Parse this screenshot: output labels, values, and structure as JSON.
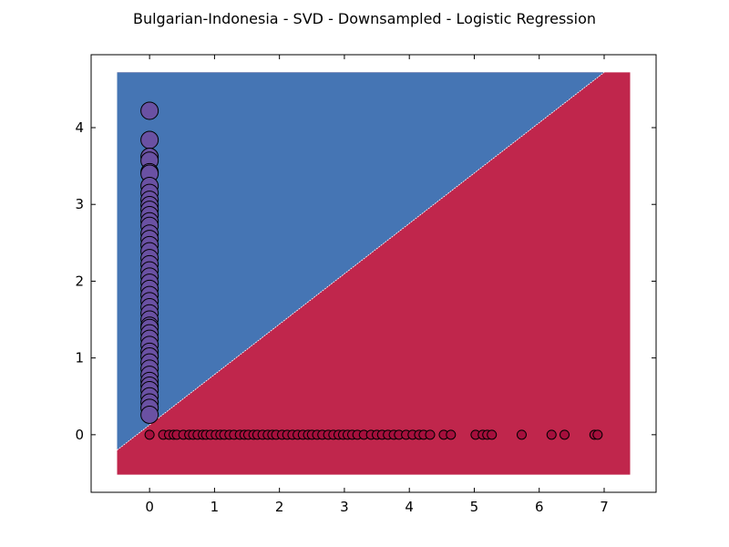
{
  "chart_data": {
    "type": "scatter",
    "title": "Bulgarian-Indonesia - SVD - Downsampled - Logistic Regression",
    "xlabel": "",
    "ylabel": "",
    "xlim": [
      -0.9,
      7.8
    ],
    "ylim": [
      -0.75,
      4.95
    ],
    "grid": false,
    "x_ticks": [
      "0",
      "1",
      "2",
      "3",
      "4",
      "5",
      "6",
      "7"
    ],
    "y_ticks": [
      "0",
      "1",
      "2",
      "3",
      "4"
    ],
    "decision_region": {
      "extent_x": [
        -0.5,
        7.4
      ],
      "extent_y": [
        -0.52,
        4.72
      ],
      "boundary_line": [
        [
          -0.5,
          -0.2
        ],
        [
          7.0,
          4.72
        ]
      ],
      "upper_left_color": "#4575b4",
      "lower_right_color": "#c0264c"
    },
    "series": [
      {
        "color": "#6a51a3",
        "marker_size": "large",
        "points": [
          [
            0,
            4.22
          ],
          [
            0,
            3.84
          ],
          [
            0,
            3.62
          ],
          [
            0,
            3.57
          ],
          [
            0,
            3.42
          ],
          [
            0,
            3.4
          ],
          [
            0,
            3.24
          ],
          [
            0,
            3.15
          ],
          [
            0,
            3.06
          ],
          [
            0,
            2.99
          ],
          [
            0,
            2.93
          ],
          [
            0,
            2.86
          ],
          [
            0,
            2.78
          ],
          [
            0,
            2.72
          ],
          [
            0,
            2.62
          ],
          [
            0,
            2.55
          ],
          [
            0,
            2.47
          ],
          [
            0,
            2.39
          ],
          [
            0,
            2.3
          ],
          [
            0,
            2.22
          ],
          [
            0,
            2.14
          ],
          [
            0,
            2.06
          ],
          [
            0,
            1.98
          ],
          [
            0,
            1.9
          ],
          [
            0,
            1.82
          ],
          [
            0,
            1.74
          ],
          [
            0,
            1.66
          ],
          [
            0,
            1.58
          ],
          [
            0,
            1.5
          ],
          [
            0,
            1.42
          ],
          [
            0,
            1.39
          ],
          [
            0,
            1.32
          ],
          [
            0,
            1.25
          ],
          [
            0,
            1.17
          ],
          [
            0,
            1.08
          ],
          [
            0,
            1.02
          ],
          [
            0,
            0.94
          ],
          [
            0,
            0.86
          ],
          [
            0,
            0.78
          ],
          [
            0,
            0.7
          ],
          [
            0,
            0.64
          ],
          [
            0,
            0.58
          ],
          [
            0,
            0.5
          ],
          [
            0,
            0.42
          ],
          [
            0,
            0.35
          ],
          [
            0,
            0.26
          ]
        ]
      },
      {
        "color": "#a50f3c",
        "marker_size": "small",
        "points": [
          [
            0,
            0
          ],
          [
            0.21,
            0
          ],
          [
            0.3,
            0
          ],
          [
            0.37,
            0
          ],
          [
            0.42,
            0
          ],
          [
            0.52,
            0
          ],
          [
            0.61,
            0
          ],
          [
            0.67,
            0
          ],
          [
            0.74,
            0
          ],
          [
            0.82,
            0
          ],
          [
            0.87,
            0
          ],
          [
            0.94,
            0
          ],
          [
            1.02,
            0
          ],
          [
            1.09,
            0
          ],
          [
            1.15,
            0
          ],
          [
            1.23,
            0
          ],
          [
            1.3,
            0
          ],
          [
            1.39,
            0
          ],
          [
            1.46,
            0
          ],
          [
            1.52,
            0
          ],
          [
            1.6,
            0
          ],
          [
            1.66,
            0
          ],
          [
            1.74,
            0
          ],
          [
            1.82,
            0
          ],
          [
            1.89,
            0
          ],
          [
            1.95,
            0
          ],
          [
            2.04,
            0
          ],
          [
            2.12,
            0
          ],
          [
            2.2,
            0
          ],
          [
            2.28,
            0
          ],
          [
            2.36,
            0
          ],
          [
            2.44,
            0
          ],
          [
            2.5,
            0
          ],
          [
            2.58,
            0
          ],
          [
            2.66,
            0
          ],
          [
            2.75,
            0
          ],
          [
            2.83,
            0
          ],
          [
            2.91,
            0
          ],
          [
            2.98,
            0
          ],
          [
            3.05,
            0
          ],
          [
            3.12,
            0
          ],
          [
            3.2,
            0
          ],
          [
            3.3,
            0
          ],
          [
            3.41,
            0
          ],
          [
            3.5,
            0
          ],
          [
            3.58,
            0
          ],
          [
            3.67,
            0
          ],
          [
            3.76,
            0
          ],
          [
            3.84,
            0
          ],
          [
            3.95,
            0
          ],
          [
            4.05,
            0
          ],
          [
            4.15,
            0
          ],
          [
            4.22,
            0
          ],
          [
            4.32,
            0
          ],
          [
            4.53,
            0
          ],
          [
            4.64,
            0
          ],
          [
            5.02,
            0
          ],
          [
            5.13,
            0
          ],
          [
            5.2,
            0
          ],
          [
            5.27,
            0
          ],
          [
            5.73,
            0
          ],
          [
            6.19,
            0
          ],
          [
            6.39,
            0
          ],
          [
            6.85,
            0
          ],
          [
            6.9,
            0
          ]
        ]
      }
    ]
  }
}
